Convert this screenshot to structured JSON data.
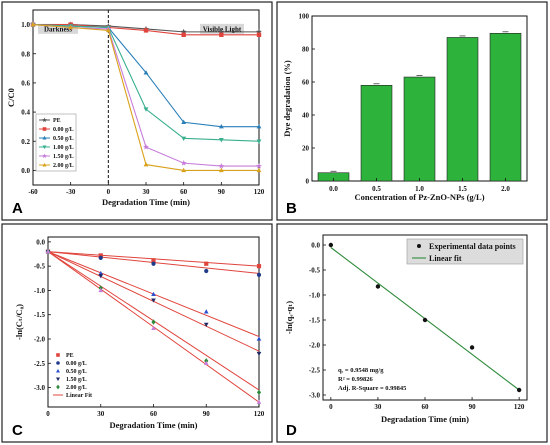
{
  "chart_data": [
    {
      "panel": "A",
      "type": "line",
      "xlabel": "Degradation Time (min)",
      "ylabel": "C/C0",
      "xlim": [
        -60,
        120
      ],
      "ylim": [
        -0.1,
        1.1
      ],
      "xticks": [
        "-60",
        "-30",
        "0",
        "30",
        "60",
        "90",
        "120"
      ],
      "yticks": [
        "0.0",
        "0.2",
        "0.4",
        "0.6",
        "0.8",
        "1.0"
      ],
      "x": [
        -60,
        -30,
        0,
        30,
        60,
        90,
        120
      ],
      "regions": [
        "Darkness",
        "Visible Light"
      ],
      "series": [
        {
          "name": "PE",
          "color": "#555555",
          "marker": "star",
          "values": [
            1.0,
            1.0,
            0.99,
            0.97,
            0.95,
            0.95,
            0.95
          ]
        },
        {
          "name": "0.00 g/L",
          "color": "#e0443c",
          "marker": "square",
          "values": [
            1.0,
            1.0,
            0.98,
            0.96,
            0.93,
            0.93,
            0.93
          ]
        },
        {
          "name": "0.50 g/L",
          "color": "#2a7fb8",
          "marker": "triangle",
          "values": [
            1.0,
            0.99,
            0.98,
            0.67,
            0.33,
            0.3,
            0.3
          ]
        },
        {
          "name": "1.00 g/L",
          "color": "#3aaf8f",
          "marker": "triangle-down",
          "values": [
            1.0,
            0.99,
            0.98,
            0.42,
            0.22,
            0.21,
            0.2
          ]
        },
        {
          "name": "1.50 g/L",
          "color": "#c77ddb",
          "marker": "star",
          "values": [
            1.0,
            0.98,
            0.97,
            0.16,
            0.05,
            0.03,
            0.03
          ]
        },
        {
          "name": "2.00 g/L",
          "color": "#d9a21c",
          "marker": "triangle",
          "values": [
            1.0,
            0.98,
            0.96,
            0.04,
            0.0,
            0.0,
            0.0
          ]
        }
      ]
    },
    {
      "panel": "B",
      "type": "bar",
      "xlabel": "Concentration of Pz-ZnO-NPs (g/L)",
      "ylabel": "Dye degradation (%)",
      "ylim": [
        0,
        100
      ],
      "yticks": [
        "0",
        "20",
        "40",
        "60",
        "80",
        "100"
      ],
      "categories": [
        "0.0",
        "0.5",
        "1.0",
        "1.5",
        "2.0"
      ],
      "values": [
        5,
        58,
        63,
        87,
        89.5
      ],
      "color": "#2db33b"
    },
    {
      "panel": "C",
      "type": "scatter",
      "xlabel": "Degradation Time (min)",
      "ylabel": "-ln(Cₜ/C₀)",
      "xlim": [
        0,
        120
      ],
      "ylim": [
        -3.4,
        0.1
      ],
      "xticks": [
        "0",
        "30",
        "60",
        "90",
        "120"
      ],
      "yticks": [
        "0.0",
        "-0.5",
        "-1.0",
        "-1.5",
        "-2.0",
        "-2.5",
        "-3.0"
      ],
      "x": [
        0,
        30,
        60,
        90,
        120
      ],
      "series": [
        {
          "name": "PE",
          "color": "#e0443c",
          "marker": "square",
          "values": [
            -0.2,
            -0.28,
            -0.38,
            -0.45,
            -0.5
          ]
        },
        {
          "name": "0.00 g/L",
          "color": "#1f3a8a",
          "marker": "circle",
          "values": [
            -0.2,
            -0.33,
            -0.45,
            -0.6,
            -0.68
          ]
        },
        {
          "name": "0.50 g/L",
          "color": "#2a4fd0",
          "marker": "triangle",
          "values": [
            -0.2,
            -0.65,
            -1.08,
            -1.44,
            -2.0
          ]
        },
        {
          "name": "1.50 g/L",
          "color": "#1f2a66",
          "marker": "triangle-down",
          "values": [
            -0.2,
            -0.7,
            -1.2,
            -1.7,
            -2.3
          ]
        },
        {
          "name": "2.00 g/L",
          "color": "#2e8b3c",
          "marker": "diamond",
          "values": [
            -0.2,
            -0.95,
            -1.65,
            -2.45,
            -3.1
          ]
        },
        {
          "name": "Linear Fit",
          "color": "#c77ddb",
          "marker": "triangle",
          "values": [
            -0.2,
            -1.0,
            -1.78,
            -2.5,
            -3.3
          ]
        }
      ],
      "fit_lines": [
        {
          "color": "#e0443c",
          "from": [
            0,
            -0.2
          ],
          "to": [
            120,
            -0.5
          ]
        },
        {
          "color": "#e0443c",
          "from": [
            0,
            -0.2
          ],
          "to": [
            120,
            -0.65
          ]
        },
        {
          "color": "#e0443c",
          "from": [
            0,
            -0.2
          ],
          "to": [
            120,
            -1.95
          ]
        },
        {
          "color": "#e0443c",
          "from": [
            0,
            -0.2
          ],
          "to": [
            120,
            -2.25
          ]
        },
        {
          "color": "#e0443c",
          "from": [
            0,
            -0.2
          ],
          "to": [
            120,
            -3.05
          ]
        },
        {
          "color": "#e0443c",
          "from": [
            0,
            -0.2
          ],
          "to": [
            120,
            -3.3
          ]
        }
      ],
      "legend": [
        "PE",
        "0.00 g/L",
        "0.50 g/L",
        "1.50 g/L",
        "2.00 g/L",
        "Linear Fit"
      ]
    },
    {
      "panel": "D",
      "type": "scatter",
      "xlabel": "Degradation Time (min)",
      "ylabel": "-ln(qₑ-qₜ)",
      "xlim": [
        -5,
        125
      ],
      "ylim": [
        -3.1,
        0.2
      ],
      "xticks": [
        "0",
        "30",
        "60",
        "90",
        "120"
      ],
      "yticks": [
        "0.0",
        "-0.5",
        "-1.0",
        "-1.5",
        "-2.0",
        "-2.5",
        "-3.0"
      ],
      "x": [
        0,
        30,
        60,
        90,
        120
      ],
      "series": [
        {
          "name": "Experimental data points",
          "color": "#111111",
          "marker": "circle",
          "values": [
            0.0,
            -0.83,
            -1.5,
            -2.05,
            -2.9
          ]
        }
      ],
      "fit": {
        "name": "Linear fit",
        "color": "#2e8b3c",
        "from": [
          0,
          -0.05
        ],
        "to": [
          120,
          -2.9
        ]
      },
      "annotations": [
        "qₑ = 0.9548 mg/g",
        "R² = 0.99826",
        "Adj. R-Square = 0.99845"
      ]
    }
  ]
}
